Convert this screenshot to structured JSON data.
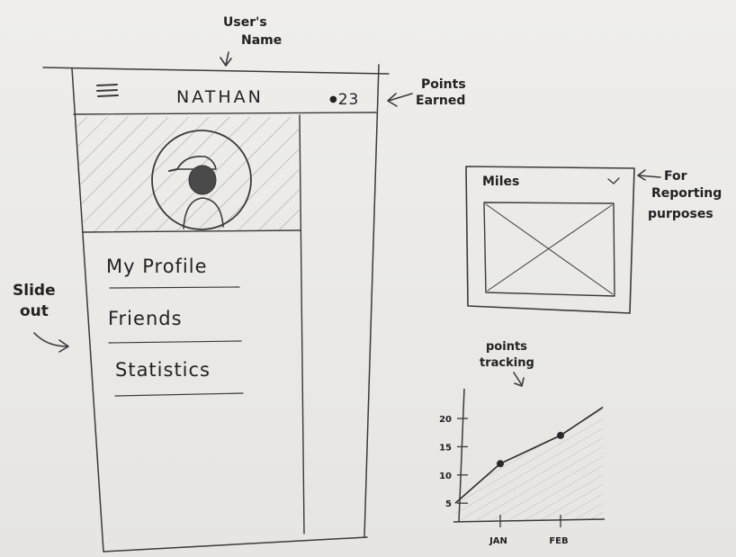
{
  "annotations": {
    "users_name_line1": "User's",
    "users_name_line2": "Name",
    "points_earned_line1": "Points",
    "points_earned_line2": "Earned",
    "slide_out_line1": "Slide",
    "slide_out_line2": "out",
    "reporting_line1": "For",
    "reporting_line2": "Reporting",
    "reporting_line3": "purposes",
    "points_tracking_line1": "points",
    "points_tracking_line2": "tracking"
  },
  "header": {
    "menu_icon": "hamburger-icon",
    "title": "NATHAN",
    "points": "23"
  },
  "profile": {
    "avatar_icon": "user-avatar-icon"
  },
  "menu": {
    "items": [
      {
        "label": "My Profile"
      },
      {
        "label": "Friends"
      },
      {
        "label": "Statistics"
      }
    ]
  },
  "report": {
    "dropdown_value": "Miles",
    "dropdown_icon": "chevron-down-icon"
  },
  "chart_data": {
    "type": "line",
    "categories": [
      "JAN",
      "FEB"
    ],
    "y_ticks": [
      5,
      10,
      15,
      20
    ],
    "x": [
      "start",
      "JAN",
      "FEB",
      "end"
    ],
    "values": [
      5,
      12,
      17,
      22
    ],
    "marker_points": [
      {
        "x": "JAN",
        "y": 12
      },
      {
        "x": "FEB",
        "y": 17
      }
    ],
    "ylim": [
      2,
      24
    ],
    "area_fill": true,
    "grid": false
  }
}
